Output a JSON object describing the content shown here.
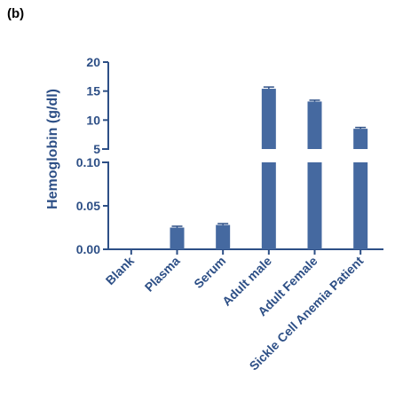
{
  "panel_label": "(b)",
  "colors": {
    "bar": "#4569a0",
    "axis": "#2d4f86"
  },
  "chart_data": {
    "type": "bar",
    "title": "",
    "xlabel": "",
    "ylabel": "Hemoglobin (g/dl)",
    "categories": [
      "Blank",
      "Plasma",
      "Serum",
      "Adult male",
      "Adult Female",
      "Sickle Cell Anemia Patient"
    ],
    "values": [
      0,
      0.025,
      0.028,
      15.4,
      13.2,
      8.5
    ],
    "errors": [
      0,
      0.0005,
      0.0005,
      0.3,
      0.2,
      0.15
    ],
    "y_axis_break": true,
    "ylim_lower": [
      0,
      0.1
    ],
    "ylim_upper": [
      5,
      20
    ],
    "yticks_lower": [
      "0.00",
      "0.05",
      "0.10"
    ],
    "yticks_upper": [
      "5",
      "10",
      "15",
      "20"
    ],
    "grid": false,
    "legend": "none"
  }
}
